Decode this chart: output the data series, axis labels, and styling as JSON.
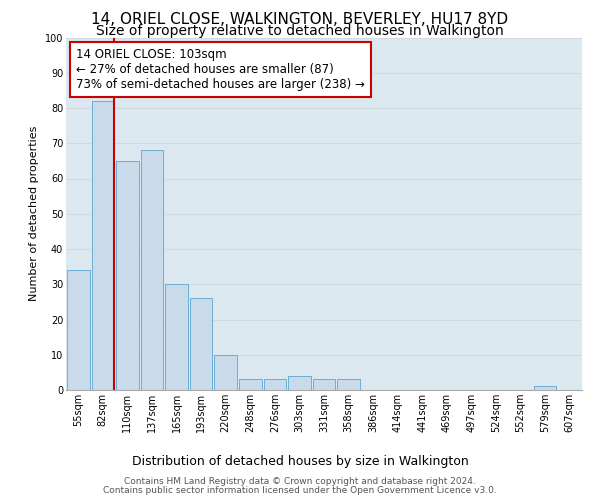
{
  "title": "14, ORIEL CLOSE, WALKINGTON, BEVERLEY, HU17 8YD",
  "subtitle": "Size of property relative to detached houses in Walkington",
  "xlabel": "Distribution of detached houses by size in Walkington",
  "ylabel": "Number of detached properties",
  "bar_labels": [
    "55sqm",
    "82sqm",
    "110sqm",
    "137sqm",
    "165sqm",
    "193sqm",
    "220sqm",
    "248sqm",
    "276sqm",
    "303sqm",
    "331sqm",
    "358sqm",
    "386sqm",
    "414sqm",
    "441sqm",
    "469sqm",
    "497sqm",
    "524sqm",
    "552sqm",
    "579sqm",
    "607sqm"
  ],
  "bar_values": [
    34,
    82,
    65,
    68,
    30,
    26,
    10,
    3,
    3,
    4,
    3,
    3,
    0,
    0,
    0,
    0,
    0,
    0,
    0,
    1,
    0
  ],
  "bar_color": "#c9daea",
  "bar_edge_color": "#6baed6",
  "vline_color": "#cc0000",
  "annotation_line1": "14 ORIEL CLOSE: 103sqm",
  "annotation_line2": "← 27% of detached houses are smaller (87)",
  "annotation_line3": "73% of semi-detached houses are larger (238) →",
  "annotation_box_color": "#ffffff",
  "annotation_box_edge": "#cc0000",
  "ylim": [
    0,
    100
  ],
  "yticks": [
    0,
    10,
    20,
    30,
    40,
    50,
    60,
    70,
    80,
    90,
    100
  ],
  "grid_color": "#d0d8e0",
  "bg_color": "#dce8f0",
  "fig_color": "#ffffff",
  "footer1": "Contains HM Land Registry data © Crown copyright and database right 2024.",
  "footer2": "Contains public sector information licensed under the Open Government Licence v3.0.",
  "title_fontsize": 11,
  "subtitle_fontsize": 10,
  "xlabel_fontsize": 9,
  "ylabel_fontsize": 8,
  "tick_fontsize": 7,
  "annotation_fontsize": 8.5,
  "footer_fontsize": 6.5
}
